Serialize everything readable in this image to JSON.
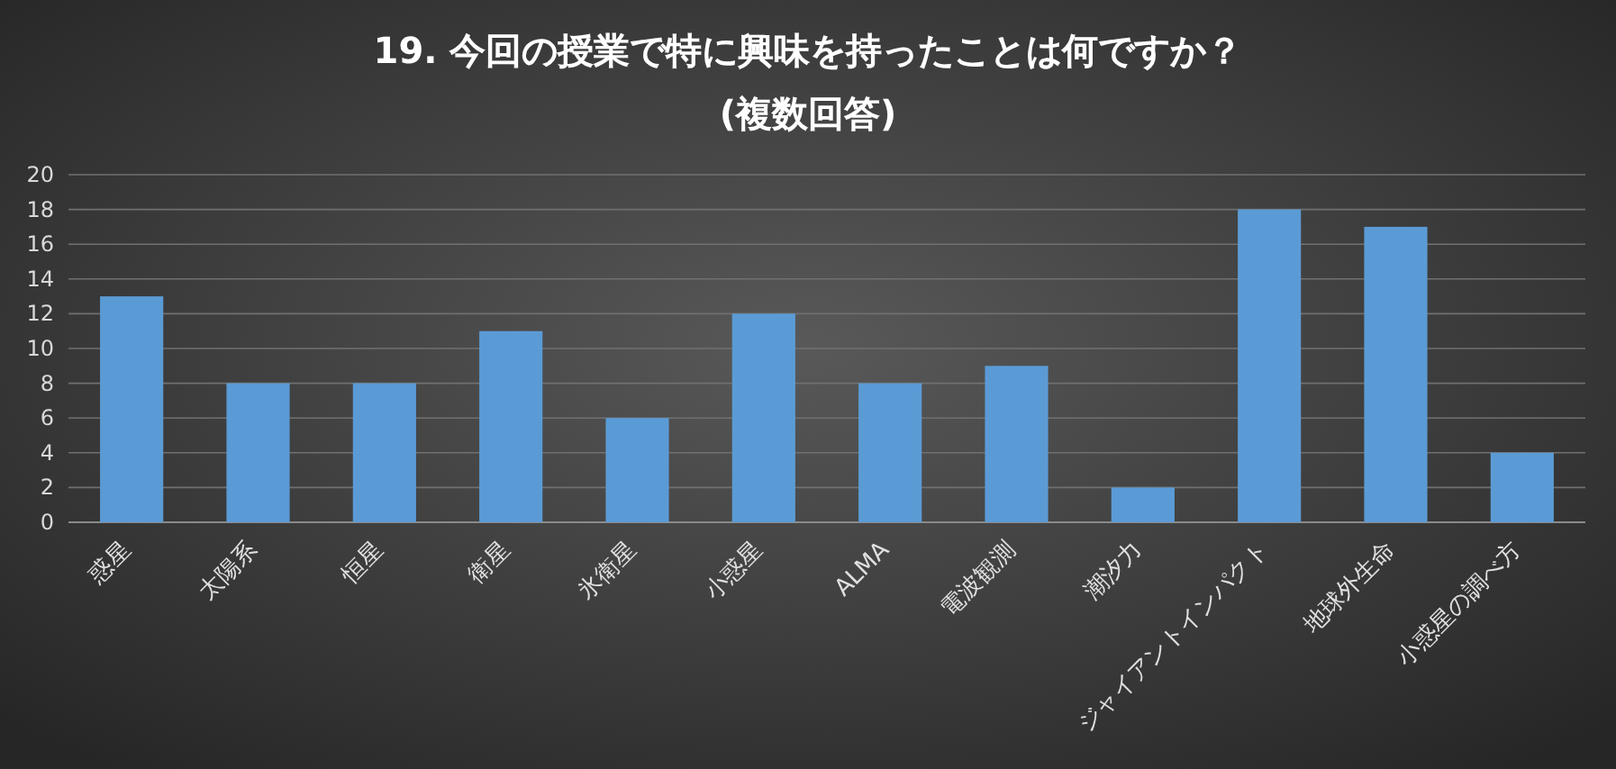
{
  "chart_data": {
    "type": "bar",
    "title": "19. 今回の授業で特に興味を持ったことは何ですか？",
    "subtitle": "(複数回答)",
    "categories": [
      "惑星",
      "太陽系",
      "恒星",
      "衛星",
      "氷衛星",
      "小惑星",
      "ALMA",
      "電波観測",
      "潮汐力",
      "ジャイアントインパクト",
      "地球外生命",
      "小惑星の調べ方"
    ],
    "values": [
      13,
      8,
      8,
      11,
      6,
      12,
      8,
      9,
      2,
      18,
      17,
      4
    ],
    "color": "#5b9bd5",
    "ylim": [
      0,
      20
    ],
    "yticks": [
      0,
      2,
      4,
      6,
      8,
      10,
      12,
      14,
      16,
      18,
      20
    ],
    "grid": "y"
  }
}
